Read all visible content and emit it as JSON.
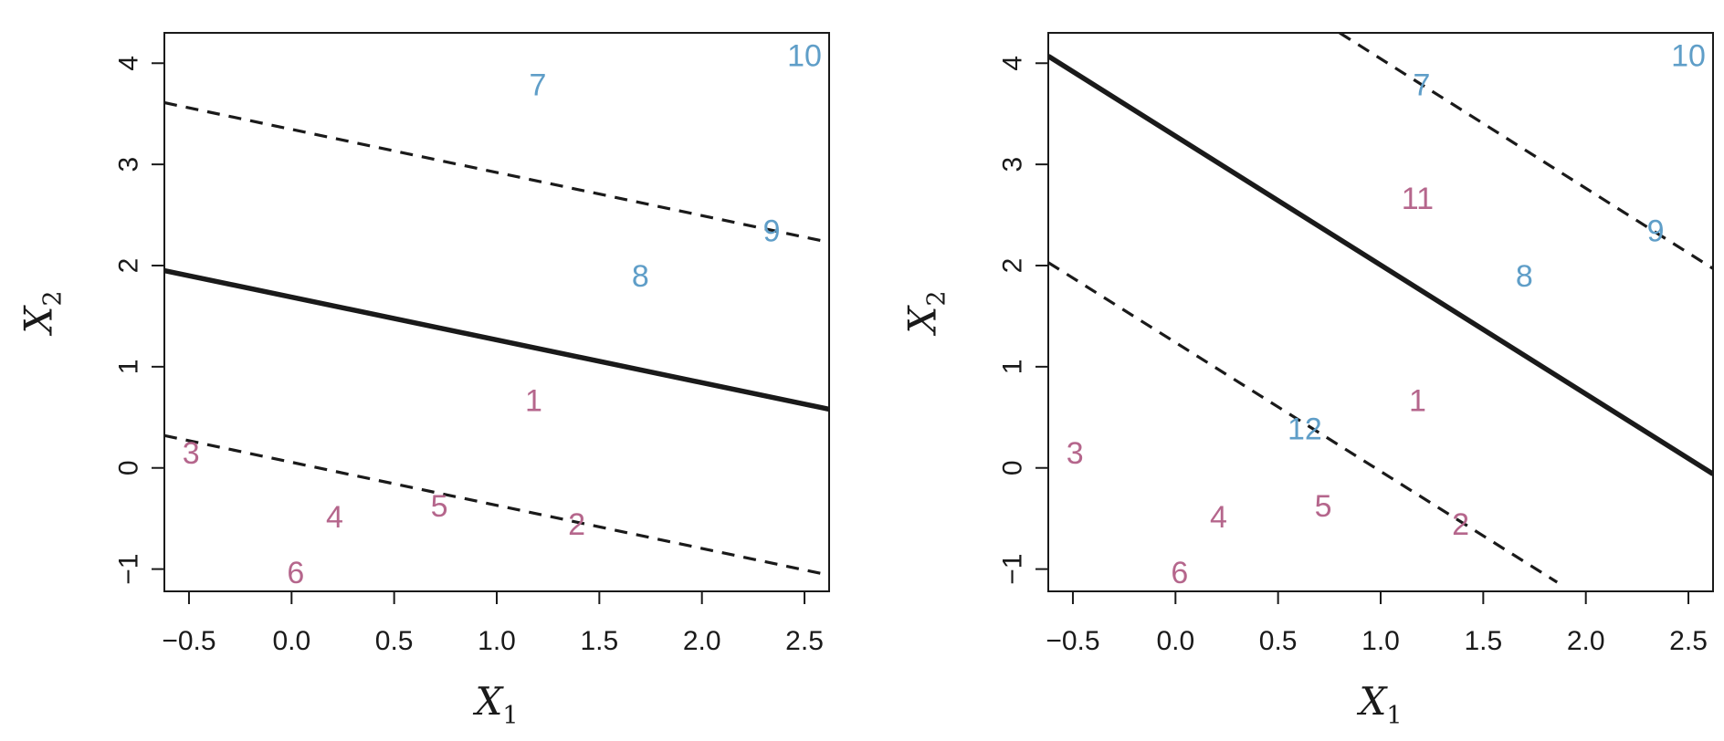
{
  "colors": {
    "class_pink": "#b5668c",
    "class_blue": "#5f9ec8",
    "axis": "#1a1a1a",
    "line": "#1a1a1a"
  },
  "chart_data": [
    {
      "type": "scatter",
      "title": "",
      "xlabel": "X",
      "xlabel_sub": "1",
      "ylabel": "X",
      "ylabel_sub": "2",
      "xlim": [
        -0.62,
        2.62
      ],
      "ylim": [
        -1.22,
        4.3
      ],
      "xticks": [
        -0.5,
        0.0,
        0.5,
        1.0,
        1.5,
        2.0,
        2.5
      ],
      "xtick_labels": [
        "−0.5",
        "0.0",
        "0.5",
        "1.0",
        "1.5",
        "2.0",
        "2.5"
      ],
      "yticks": [
        -1,
        0,
        1,
        2,
        3,
        4
      ],
      "ytick_labels": [
        "−1",
        "0",
        "1",
        "2",
        "3",
        "4"
      ],
      "grid": false,
      "points": [
        {
          "label": "1",
          "x": 1.18,
          "y": 0.66,
          "class": "pink"
        },
        {
          "label": "2",
          "x": 1.39,
          "y": -0.56,
          "class": "pink"
        },
        {
          "label": "3",
          "x": -0.49,
          "y": 0.14,
          "class": "pink"
        },
        {
          "label": "4",
          "x": 0.21,
          "y": -0.49,
          "class": "pink"
        },
        {
          "label": "5",
          "x": 0.72,
          "y": -0.38,
          "class": "pink"
        },
        {
          "label": "6",
          "x": 0.02,
          "y": -1.04,
          "class": "pink"
        },
        {
          "label": "7",
          "x": 1.2,
          "y": 3.78,
          "class": "blue"
        },
        {
          "label": "8",
          "x": 1.7,
          "y": 1.89,
          "class": "blue"
        },
        {
          "label": "9",
          "x": 2.34,
          "y": 2.34,
          "class": "blue"
        },
        {
          "label": "10",
          "x": 2.5,
          "y": 4.07,
          "class": "blue"
        }
      ],
      "lines": [
        {
          "style": "solid",
          "x": [
            -0.62,
            2.62
          ],
          "y": [
            1.95,
            0.58
          ]
        },
        {
          "style": "dashed",
          "x": [
            -0.62,
            2.62
          ],
          "y": [
            3.61,
            2.23
          ]
        },
        {
          "style": "dashed",
          "x": [
            -0.62,
            2.62
          ],
          "y": [
            0.32,
            -1.06
          ]
        }
      ]
    },
    {
      "type": "scatter",
      "title": "",
      "xlabel": "X",
      "xlabel_sub": "1",
      "ylabel": "X",
      "ylabel_sub": "2",
      "xlim": [
        -0.62,
        2.62
      ],
      "ylim": [
        -1.22,
        4.3
      ],
      "xticks": [
        -0.5,
        0.0,
        0.5,
        1.0,
        1.5,
        2.0,
        2.5
      ],
      "xtick_labels": [
        "−0.5",
        "0.0",
        "0.5",
        "1.0",
        "1.5",
        "2.0",
        "2.5"
      ],
      "yticks": [
        -1,
        0,
        1,
        2,
        3,
        4
      ],
      "ytick_labels": [
        "−1",
        "0",
        "1",
        "2",
        "3",
        "4"
      ],
      "grid": false,
      "points": [
        {
          "label": "1",
          "x": 1.18,
          "y": 0.66,
          "class": "pink"
        },
        {
          "label": "2",
          "x": 1.39,
          "y": -0.56,
          "class": "pink"
        },
        {
          "label": "3",
          "x": -0.49,
          "y": 0.14,
          "class": "pink"
        },
        {
          "label": "4",
          "x": 0.21,
          "y": -0.49,
          "class": "pink"
        },
        {
          "label": "5",
          "x": 0.72,
          "y": -0.38,
          "class": "pink"
        },
        {
          "label": "6",
          "x": 0.02,
          "y": -1.04,
          "class": "pink"
        },
        {
          "label": "11",
          "x": 1.18,
          "y": 2.66,
          "class": "pink"
        },
        {
          "label": "7",
          "x": 1.2,
          "y": 3.78,
          "class": "blue"
        },
        {
          "label": "8",
          "x": 1.7,
          "y": 1.89,
          "class": "blue"
        },
        {
          "label": "9",
          "x": 2.34,
          "y": 2.34,
          "class": "blue"
        },
        {
          "label": "10",
          "x": 2.5,
          "y": 4.07,
          "class": "blue"
        },
        {
          "label": "12",
          "x": 0.63,
          "y": 0.38,
          "class": "blue"
        }
      ],
      "lines": [
        {
          "style": "solid",
          "x": [
            -0.62,
            2.62
          ],
          "y": [
            4.07,
            -0.06
          ]
        },
        {
          "style": "dashed",
          "x": [
            0.8,
            2.62
          ],
          "y": [
            4.3,
            1.97
          ]
        },
        {
          "style": "dashed",
          "x": [
            -0.62,
            1.86
          ],
          "y": [
            2.03,
            -1.13
          ]
        }
      ]
    }
  ]
}
